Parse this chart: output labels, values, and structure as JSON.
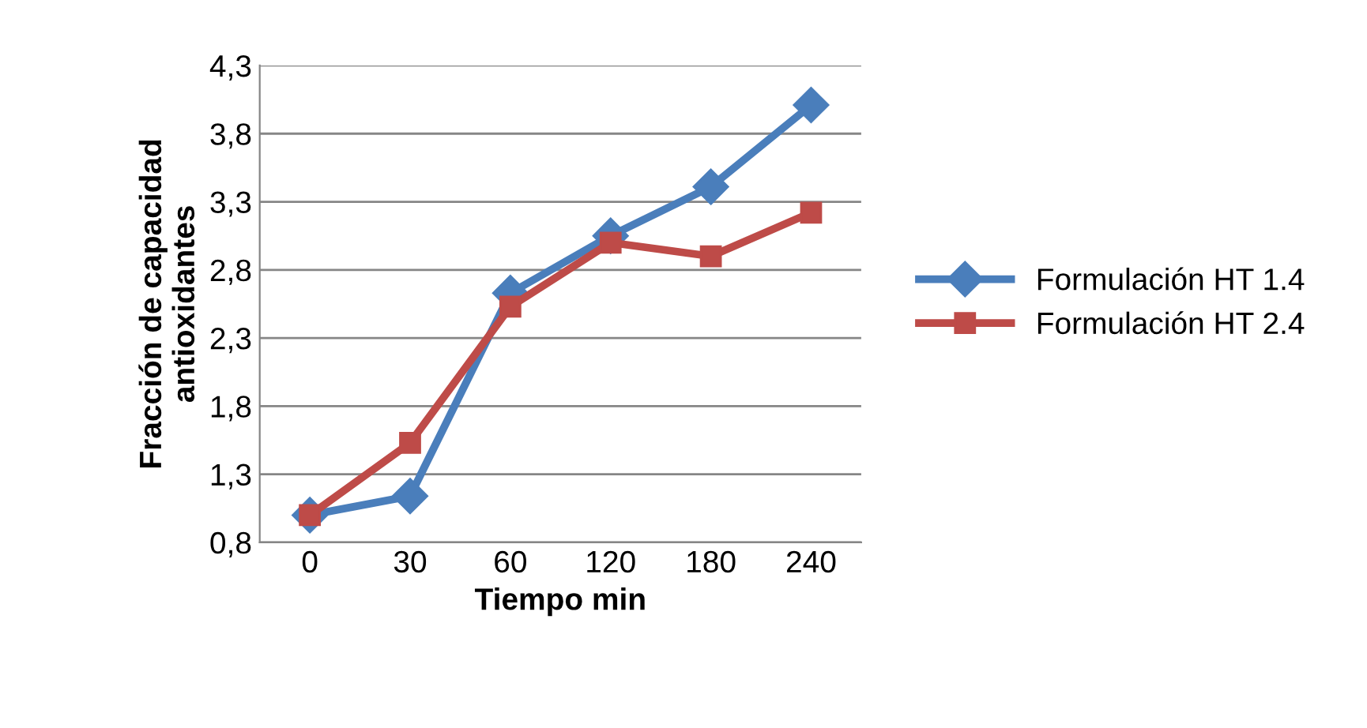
{
  "chart_data": {
    "type": "line",
    "xlabel": "Tiempo min",
    "ylabel": "Fracción de capacidad\nantioxidantes",
    "categories": [
      "0",
      "30",
      "60",
      "120",
      "180",
      "240"
    ],
    "series": [
      {
        "name": "Formulación HT 1.4",
        "color": "#4a7ebb",
        "marker": "diamond",
        "values": [
          1.0,
          1.14,
          2.63,
          3.05,
          3.41,
          4.01
        ]
      },
      {
        "name": "Formulación HT 2.4",
        "color": "#be4b48",
        "marker": "square",
        "values": [
          1.0,
          1.53,
          2.53,
          3.0,
          2.9,
          3.22
        ]
      }
    ],
    "ylim": [
      0.8,
      4.3
    ],
    "yticks": [
      {
        "value": 0.8,
        "label": "0,8"
      },
      {
        "value": 1.3,
        "label": "1,3"
      },
      {
        "value": 1.8,
        "label": "1,8"
      },
      {
        "value": 2.3,
        "label": "2,3"
      },
      {
        "value": 2.8,
        "label": "2,8"
      },
      {
        "value": 3.3,
        "label": "3,3"
      },
      {
        "value": 3.8,
        "label": "3,8"
      },
      {
        "value": 4.3,
        "label": "4,3"
      }
    ],
    "grid": "y",
    "legend": "right",
    "line_style": "solid"
  }
}
